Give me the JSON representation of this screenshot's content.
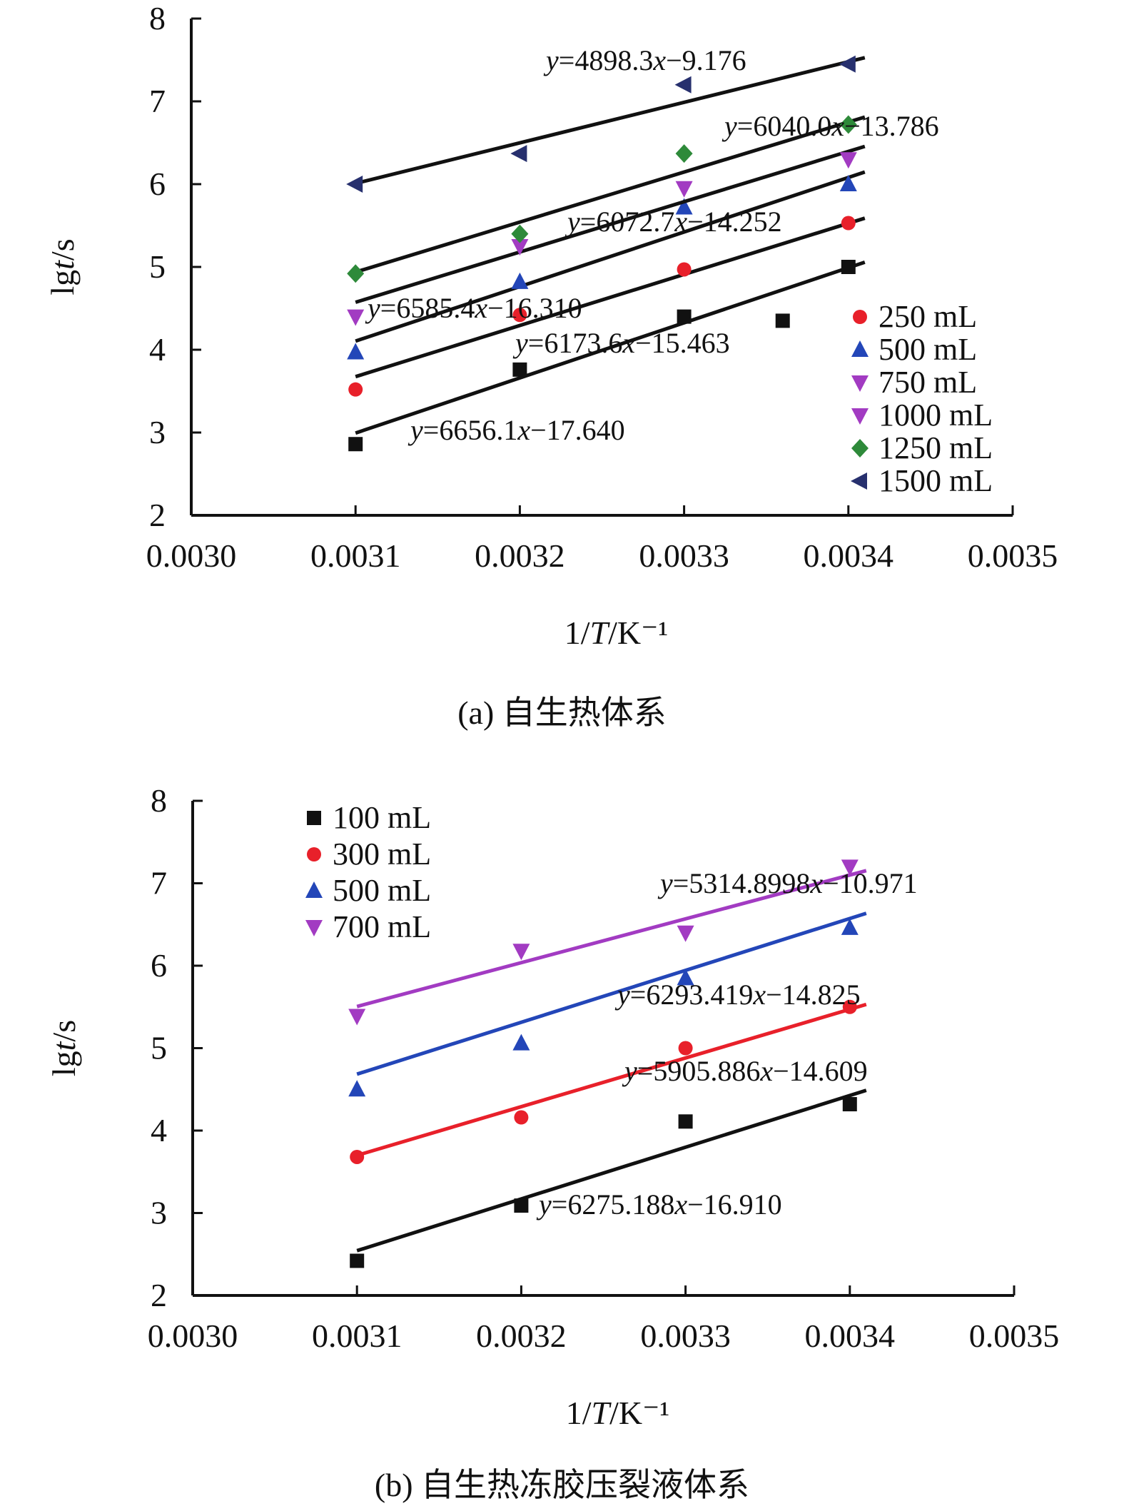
{
  "chart_data": [
    {
      "type": "scatter",
      "title": "",
      "caption": "(a) 自生热体系",
      "xlabel": "1/T/K⁻¹",
      "ylabel": "lgt/s",
      "xlim": [
        0.003,
        0.0035
      ],
      "ylim": [
        2,
        8
      ],
      "xticks": [
        "0.0030",
        "0.0031",
        "0.0032",
        "0.0033",
        "0.0034",
        "0.0035"
      ],
      "yticks": [
        "2",
        "3",
        "4",
        "5",
        "6",
        "7",
        "8"
      ],
      "legend_position": "bottom-right",
      "series": [
        {
          "name": "250 mL",
          "color": "#e8202a",
          "marker": "circle",
          "x": [
            0.0031,
            0.0032,
            0.0033,
            0.0034
          ],
          "y": [
            3.52,
            4.42,
            4.97,
            5.53
          ],
          "fit": {
            "slope": 6173.6,
            "intercept": -15.463
          },
          "equation": "y=6173.6x−15.463"
        },
        {
          "name": "500 mL",
          "color": "#2346b8",
          "marker": "triangle-up",
          "x": [
            0.0031,
            0.0032,
            0.0033,
            0.0034
          ],
          "y": [
            3.97,
            4.82,
            5.72,
            6.0
          ],
          "fit": {
            "slope": 6585.4,
            "intercept": -16.31
          },
          "equation": "y=6585.4x−16.310"
        },
        {
          "name": "750 mL",
          "color": "#a23bc2",
          "marker": "triangle-down",
          "x": [
            0.0031,
            0.0032,
            0.0033,
            0.0034
          ],
          "y": [
            4.4,
            5.25,
            5.95,
            6.3
          ],
          "fit": {
            "slope": 6072.7,
            "intercept": -14.252
          },
          "equation": "y=6072.7x−14.252"
        },
        {
          "name": "1000 mL",
          "color": "#a23bc2",
          "marker": "triangle-down",
          "x": [],
          "y": [],
          "fit": null,
          "equation": ""
        },
        {
          "name": "1250 mL",
          "color": "#2e8a3a",
          "marker": "diamond",
          "x": [
            0.0031,
            0.0032,
            0.0033,
            0.0034
          ],
          "y": [
            4.92,
            5.4,
            6.37,
            6.72
          ],
          "fit": {
            "slope": 6040.0,
            "intercept": -13.786
          },
          "equation": "y=6040.0x−13.786"
        },
        {
          "name": "1500 mL",
          "color": "#27306e",
          "marker": "triangle-left",
          "x": [
            0.0031,
            0.0032,
            0.0033,
            0.0034
          ],
          "y": [
            6.0,
            6.37,
            7.2,
            7.45
          ],
          "fit": {
            "slope": 4898.3,
            "intercept": -9.176
          },
          "equation": "y=4898.3x−9.176"
        },
        {
          "name": "",
          "color": "#111111",
          "marker": "square",
          "x": [
            0.0031,
            0.0032,
            0.0033,
            0.00336,
            0.0034
          ],
          "y": [
            2.86,
            3.76,
            4.4,
            4.35,
            5.0
          ],
          "fit": {
            "slope": 6656.1,
            "intercept": -17.64
          },
          "equation": "y=6656.1x−17.640"
        }
      ]
    },
    {
      "type": "scatter",
      "title": "",
      "caption": "(b) 自生热冻胶压裂液体系",
      "xlabel": "1/T/K⁻¹",
      "ylabel": "lgt/s",
      "xlim": [
        0.003,
        0.0035
      ],
      "ylim": [
        2,
        8
      ],
      "xticks": [
        "0.0030",
        "0.0031",
        "0.0032",
        "0.0033",
        "0.0034",
        "0.0035"
      ],
      "yticks": [
        "2",
        "3",
        "4",
        "5",
        "6",
        "7",
        "8"
      ],
      "legend_position": "top-left",
      "series": [
        {
          "name": "100 mL",
          "color": "#111111",
          "marker": "square",
          "x": [
            0.0031,
            0.0032,
            0.0033,
            0.0034
          ],
          "y": [
            2.42,
            3.09,
            4.11,
            4.32
          ],
          "fit": {
            "slope": 6275.188,
            "intercept": -16.91
          },
          "equation": "y=6275.188x−16.910"
        },
        {
          "name": "300 mL",
          "color": "#e8202a",
          "marker": "circle",
          "x": [
            0.0031,
            0.0032,
            0.0033,
            0.0034
          ],
          "y": [
            3.68,
            4.16,
            5.0,
            5.5
          ],
          "fit": {
            "slope": 5905.886,
            "intercept": -14.609
          },
          "equation": "y=5905.886x−14.609"
        },
        {
          "name": "500 mL",
          "color": "#2346b8",
          "marker": "triangle-up",
          "x": [
            0.0031,
            0.0032,
            0.0033,
            0.0034
          ],
          "y": [
            4.5,
            5.06,
            5.85,
            6.46
          ],
          "fit": {
            "slope": 6293.419,
            "intercept": -14.825
          },
          "equation": "y=6293.419x−14.825"
        },
        {
          "name": "700 mL",
          "color": "#a23bc2",
          "marker": "triangle-down",
          "x": [
            0.0031,
            0.0032,
            0.0033,
            0.0034
          ],
          "y": [
            5.39,
            6.18,
            6.4,
            7.2
          ],
          "fit": {
            "slope": 5314.8998,
            "intercept": -10.971
          },
          "equation": "y=5314.8998x−10.971"
        }
      ]
    }
  ]
}
